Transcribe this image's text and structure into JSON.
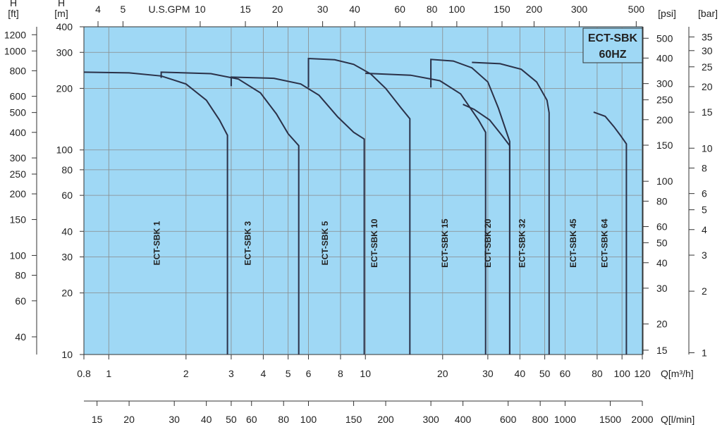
{
  "chart_data": {
    "type": "line",
    "badge": [
      "ECT-SBK",
      "60HZ"
    ],
    "colors": {
      "plot_bg": "#9fd8f5",
      "curve": "#2b3148",
      "grid": "#8a8a8a"
    },
    "log_scale": {
      "x": true,
      "y": true
    },
    "grid": true,
    "xlim": [
      0.8,
      120
    ],
    "ylim": [
      10,
      400
    ],
    "axes": {
      "left_h_ft": {
        "unit_lines": [
          "H",
          "[ft]"
        ],
        "ticks": [
          "1200",
          "1000",
          "800",
          "600",
          "500",
          "400",
          "300",
          "250",
          "200",
          "150",
          "100",
          "80",
          "60",
          "40"
        ],
        "values_m": [
          365.8,
          304.8,
          243.8,
          182.9,
          152.4,
          121.9,
          91.4,
          76.2,
          61.0,
          45.7,
          30.5,
          24.4,
          18.3,
          12.2
        ]
      },
      "left_h_m": {
        "unit_lines": [
          "H",
          "[m]"
        ],
        "ticks": [
          "400",
          "300",
          "200",
          "100",
          "80",
          "60",
          "40",
          "30",
          "20",
          "10"
        ],
        "values_m": [
          400,
          300,
          200,
          100,
          80,
          60,
          40,
          30,
          20,
          10
        ]
      },
      "right_psi": {
        "unit": "[psi]",
        "ticks": [
          "500",
          "400",
          "300",
          "250",
          "200",
          "150",
          "100",
          "80",
          "60",
          "50",
          "40",
          "30",
          "20",
          "15"
        ],
        "values_m": [
          351.6,
          281.3,
          211.0,
          175.8,
          140.6,
          105.5,
          70.3,
          56.2,
          42.2,
          35.2,
          28.1,
          21.1,
          14.1,
          10.5
        ]
      },
      "right_bar": {
        "unit": "[bar]",
        "ticks": [
          "35",
          "30",
          "25",
          "20",
          "15",
          "10",
          "8",
          "6",
          "5",
          "4",
          "3",
          "2",
          "1"
        ],
        "values_m": [
          356.9,
          305.9,
          254.9,
          203.9,
          153.0,
          102.0,
          81.6,
          61.2,
          51.0,
          40.8,
          30.6,
          20.4,
          10.2
        ]
      },
      "top_gpm": {
        "unit": "U.S.GPM",
        "ticks": [
          "4",
          "5",
          "10",
          "15",
          "20",
          "30",
          "40",
          "60",
          "80",
          "100",
          "150",
          "200",
          "300",
          "500"
        ],
        "values_m3h": [
          0.908,
          1.136,
          2.271,
          3.407,
          4.542,
          6.814,
          9.085,
          13.63,
          18.17,
          22.71,
          34.07,
          45.42,
          68.14,
          113.6
        ]
      },
      "bottom_m3h": {
        "unit": "Q[m³/h]",
        "ticks": [
          "0.8",
          "1",
          "2",
          "3",
          "4",
          "5",
          "6",
          "8",
          "10",
          "20",
          "30",
          "40",
          "50",
          "60",
          "80",
          "100",
          "120"
        ],
        "values_m3h": [
          0.8,
          1,
          2,
          3,
          4,
          5,
          6,
          8,
          10,
          20,
          30,
          40,
          50,
          60,
          80,
          100,
          120
        ]
      },
      "bottom_lmin": {
        "unit": "Q[l/min]",
        "ticks": [
          "15",
          "20",
          "30",
          "40",
          "50",
          "60",
          "80",
          "100",
          "150",
          "200",
          "300",
          "400",
          "600",
          "800",
          "1000",
          "1500",
          "2000"
        ],
        "values_m3h": [
          0.9,
          1.2,
          1.8,
          2.4,
          3.0,
          3.6,
          4.8,
          6.0,
          9.0,
          12.0,
          18.0,
          24.0,
          36.0,
          48.0,
          60.0,
          90.0,
          120.0
        ]
      }
    },
    "series": [
      {
        "name": "ECT-SBK 1",
        "label_x": 1.55,
        "label_y": 35,
        "points": [
          [
            0.8,
            240
          ],
          [
            1.2,
            238
          ],
          [
            1.6,
            230
          ],
          [
            2.0,
            210
          ],
          [
            2.4,
            175
          ],
          [
            2.7,
            140
          ],
          [
            2.9,
            118
          ],
          [
            2.9,
            10
          ]
        ]
      },
      {
        "name": "ECT-SBK 3",
        "label_x": 3.5,
        "label_y": 35,
        "points": [
          [
            1.6,
            225
          ],
          [
            1.6,
            240
          ],
          [
            2.5,
            236
          ],
          [
            3.2,
            222
          ],
          [
            3.9,
            190
          ],
          [
            4.5,
            150
          ],
          [
            5.0,
            120
          ],
          [
            5.5,
            105
          ],
          [
            5.5,
            10
          ]
        ]
      },
      {
        "name": "ECT-SBK 5",
        "label_x": 7.0,
        "label_y": 35,
        "points": [
          [
            3.0,
            205
          ],
          [
            3.0,
            227
          ],
          [
            4.4,
            224
          ],
          [
            5.6,
            210
          ],
          [
            6.6,
            185
          ],
          [
            7.8,
            145
          ],
          [
            9.0,
            122
          ],
          [
            9.9,
            113
          ],
          [
            9.9,
            10
          ]
        ]
      },
      {
        "name": "ECT-SBK 10",
        "label_x": 10.9,
        "label_y": 35,
        "points": [
          [
            6.0,
            202
          ],
          [
            6.0,
            280
          ],
          [
            7.6,
            276
          ],
          [
            9.0,
            262
          ],
          [
            10.5,
            235
          ],
          [
            12.0,
            200
          ],
          [
            13.8,
            160
          ],
          [
            14.9,
            142
          ],
          [
            14.9,
            10
          ]
        ]
      },
      {
        "name": "ECT-SBK 15",
        "label_x": 20.5,
        "label_y": 35,
        "points": [
          [
            10.0,
            237
          ],
          [
            15.0,
            232
          ],
          [
            19.5,
            218
          ],
          [
            23.5,
            188
          ],
          [
            27.6,
            140
          ],
          [
            29.4,
            122
          ],
          [
            29.4,
            10
          ]
        ]
      },
      {
        "name": "ECT-SBK 20",
        "label_x": 30.2,
        "label_y": 35,
        "points": [
          [
            18.0,
            202
          ],
          [
            18.0,
            277
          ],
          [
            22.0,
            272
          ],
          [
            26.0,
            252
          ],
          [
            30.0,
            215
          ],
          [
            33.0,
            160
          ],
          [
            36.5,
            110
          ],
          [
            36.5,
            10
          ]
        ]
      },
      {
        "name": "ECT-SBK 32",
        "label_x": 41.0,
        "label_y": 35,
        "points": [
          [
            24.0,
            167
          ],
          [
            26.5,
            158
          ],
          [
            30.5,
            140
          ],
          [
            34.0,
            118
          ],
          [
            36.5,
            105
          ],
          [
            36.5,
            10
          ]
        ]
      },
      {
        "name": "ECT-SBK 45",
        "label_x": 65.0,
        "label_y": 35,
        "points": [
          [
            26.0,
            268
          ],
          [
            33.5,
            264
          ],
          [
            40.5,
            248
          ],
          [
            46.5,
            215
          ],
          [
            51.0,
            175
          ],
          [
            52.0,
            152
          ],
          [
            52.0,
            10
          ]
        ]
      },
      {
        "name": "ECT-SBK 64",
        "label_x": 86.0,
        "label_y": 35,
        "points": [
          [
            77.5,
            153
          ],
          [
            86.0,
            146
          ],
          [
            93.0,
            130
          ],
          [
            99.0,
            117
          ],
          [
            104.0,
            107
          ],
          [
            104.0,
            10
          ]
        ]
      }
    ]
  }
}
